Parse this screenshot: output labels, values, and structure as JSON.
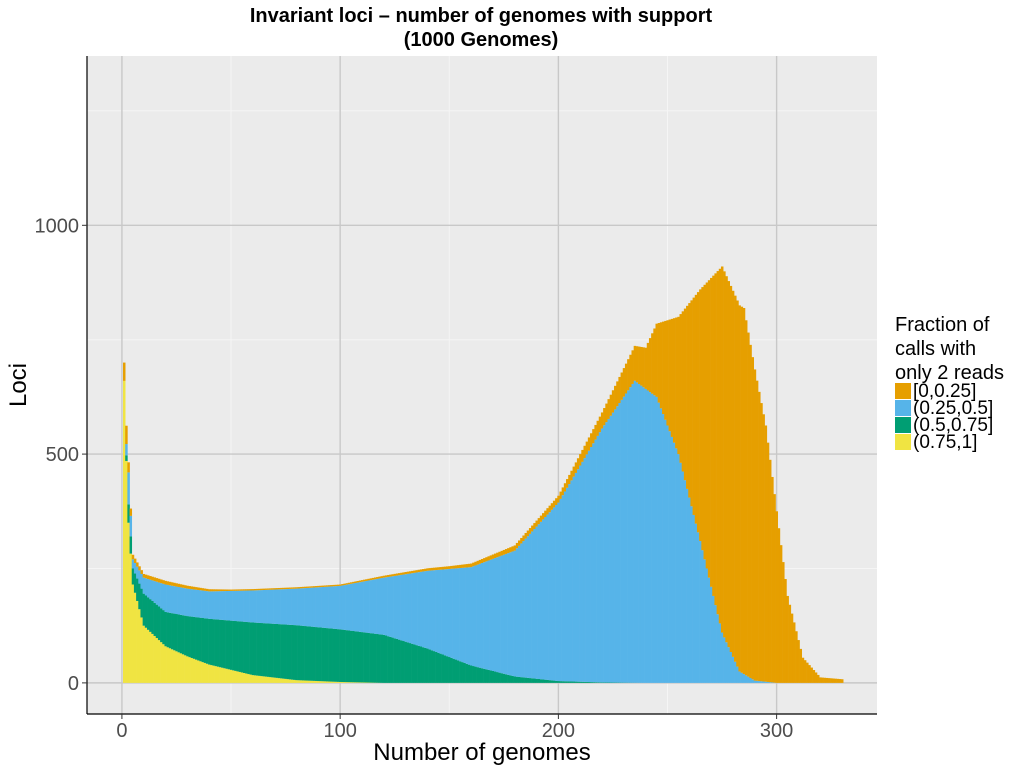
{
  "chart_data": {
    "type": "bar",
    "title": "Invariant loci – number of genomes with support",
    "subtitle": "(1000 Genomes)",
    "xlabel": "Number of genomes",
    "ylabel": "Loci",
    "xlim": [
      -16,
      346
    ],
    "ylim": [
      -68,
      1370
    ],
    "x_ticks": [
      0,
      100,
      200,
      300
    ],
    "x_tick_labels": [
      "0",
      "100",
      "200",
      "300"
    ],
    "y_ticks": [
      0,
      500,
      1000
    ],
    "y_tick_labels": [
      "0",
      "500",
      "1000"
    ],
    "x_minor_ticks": [
      50,
      150,
      250
    ],
    "y_minor_ticks": [
      250,
      750,
      1250
    ],
    "grid": true,
    "stacked": true,
    "legend": {
      "title_lines": [
        "Fraction of",
        "calls with",
        "only 2 reads"
      ],
      "placement": "right"
    },
    "series": [
      {
        "name": "[0,0.25]",
        "color": "#E69F00",
        "curve_genomes": [
          1,
          2,
          3,
          5,
          10,
          20,
          50,
          100,
          150,
          200,
          220,
          240,
          255,
          265,
          275,
          285,
          295,
          305,
          312,
          320,
          330
        ],
        "curve_loci": [
          40,
          40,
          22,
          10,
          8,
          8,
          3,
          3,
          6,
          15,
          35,
          90,
          300,
          550,
          800,
          800,
          560,
          190,
          55,
          12,
          8
        ]
      },
      {
        "name": "(0.25,0.5]",
        "color": "#56B4E9",
        "curve_genomes": [
          1,
          2,
          3,
          5,
          10,
          20,
          40,
          80,
          100,
          120,
          140,
          160,
          180,
          200,
          220,
          235,
          245,
          255,
          265,
          275,
          283,
          290,
          300,
          310
        ],
        "curve_loci": [
          0,
          25,
          70,
          20,
          35,
          60,
          60,
          80,
          95,
          125,
          170,
          215,
          275,
          390,
          555,
          660,
          625,
          500,
          310,
          110,
          25,
          5,
          0,
          0
        ]
      },
      {
        "name": "(0.5,0.75]",
        "color": "#009E73",
        "curve_genomes": [
          1,
          2,
          3,
          5,
          10,
          20,
          30,
          40,
          60,
          80,
          100,
          120,
          140,
          160,
          180,
          200,
          220,
          240
        ],
        "curve_loci": [
          0,
          12,
          40,
          35,
          70,
          75,
          88,
          100,
          115,
          120,
          115,
          105,
          75,
          38,
          14,
          4,
          1,
          0
        ]
      },
      {
        "name": "(0.75,1]",
        "color": "#F0E442",
        "curve_genomes": [
          1,
          2,
          3,
          5,
          10,
          20,
          30,
          40,
          60,
          80,
          100,
          120,
          150
        ],
        "curve_loci": [
          660,
          485,
          350,
          215,
          125,
          80,
          58,
          40,
          17,
          6,
          2,
          0,
          0
        ]
      }
    ]
  }
}
